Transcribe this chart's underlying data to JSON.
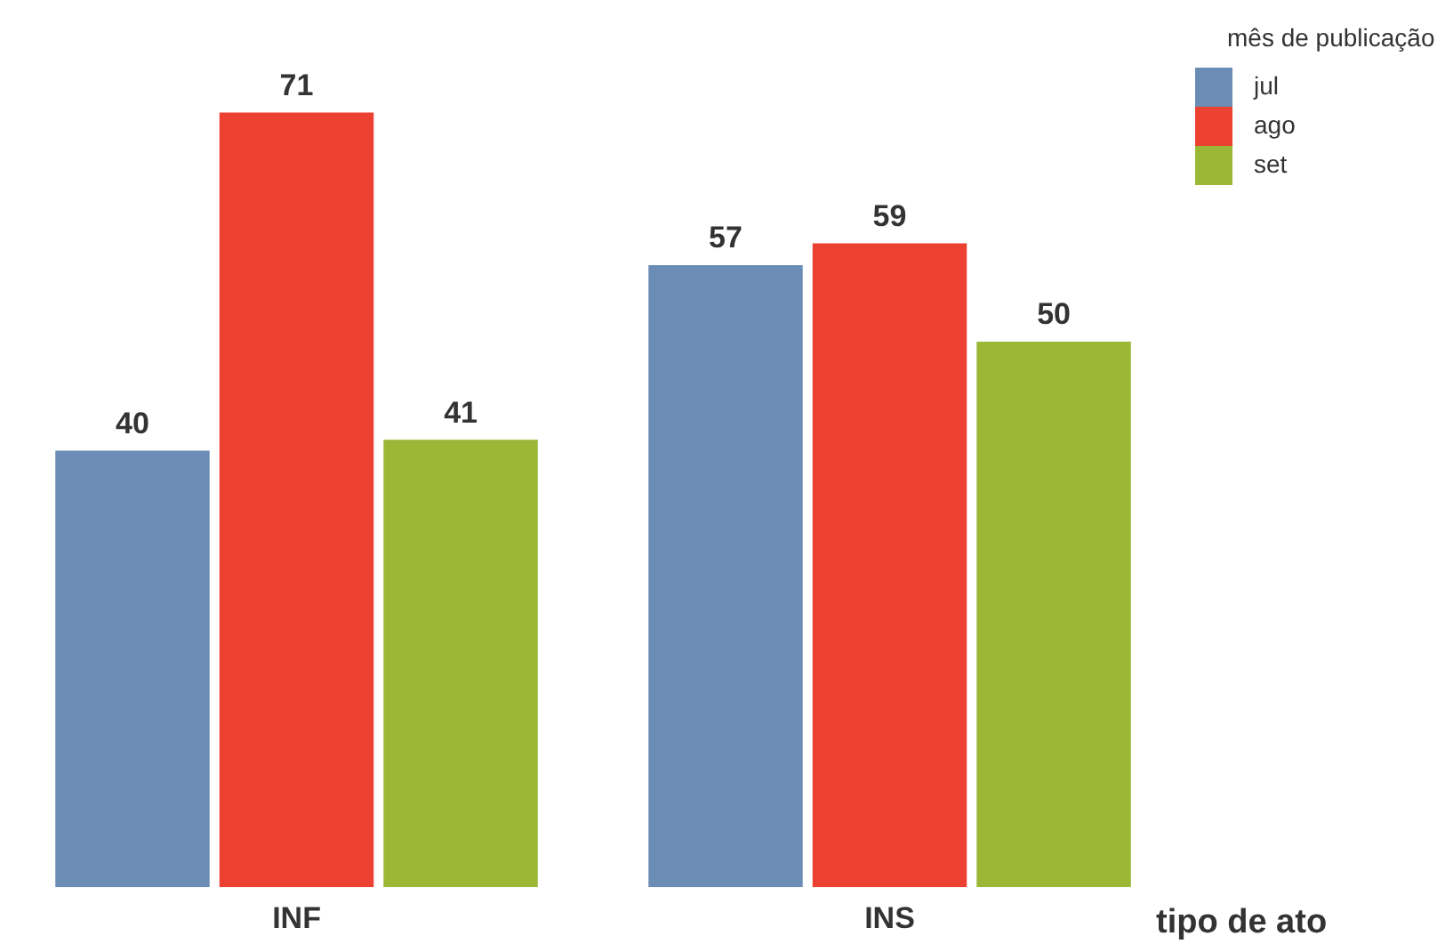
{
  "chart_data": {
    "type": "bar",
    "xlabel": "tipo de ato",
    "legend_title": "mês de publicação",
    "categories": [
      "INF",
      "INS"
    ],
    "series": [
      {
        "name": "jul",
        "color": "#6b8db5",
        "values": [
          40,
          57
        ]
      },
      {
        "name": "ago",
        "color": "#ec4030",
        "values": [
          71,
          59
        ]
      },
      {
        "name": "set",
        "color": "#9ab835",
        "values": [
          41,
          50
        ]
      }
    ],
    "data_labels": true,
    "legend": "top right",
    "grid": false,
    "tick_labels": "x"
  }
}
